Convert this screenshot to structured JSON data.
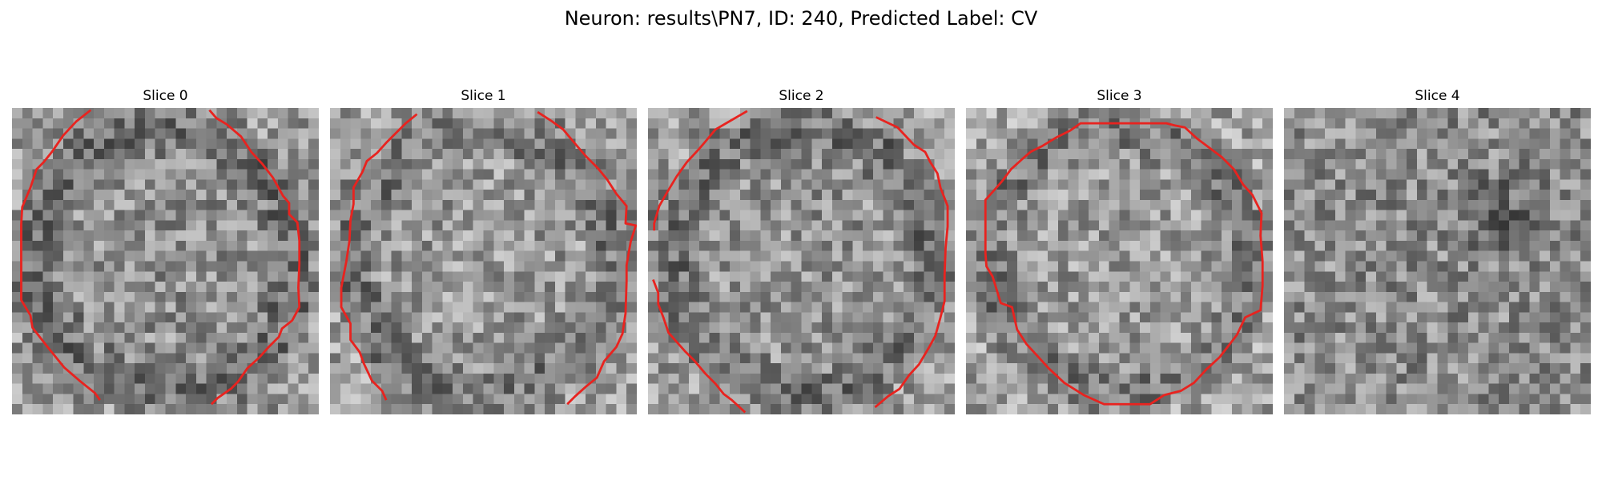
{
  "figure": {
    "title": "Neuron: results\\PN7, ID: 240, Predicted Label: CV",
    "contour_color": "#e8231f"
  },
  "slices": [
    {
      "title": "Slice 0",
      "has_contour": true,
      "darkness": "low"
    },
    {
      "title": "Slice 1",
      "has_contour": true,
      "darkness": "medium"
    },
    {
      "title": "Slice 2",
      "has_contour": true,
      "darkness": "medium"
    },
    {
      "title": "Slice 3",
      "has_contour": true,
      "darkness": "medium"
    },
    {
      "title": "Slice 4",
      "has_contour": false,
      "darkness": "low"
    }
  ]
}
